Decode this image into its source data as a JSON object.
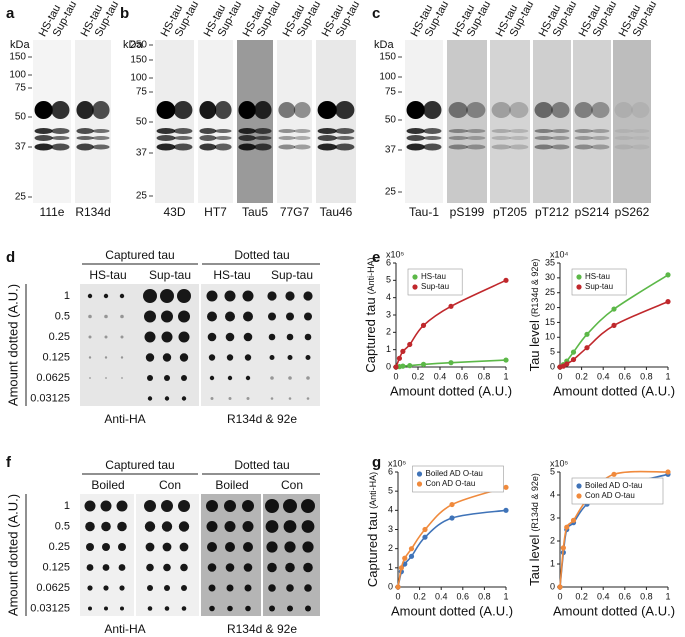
{
  "panel_labels": [
    "a",
    "b",
    "c",
    "d",
    "e",
    "f",
    "g"
  ],
  "blots": {
    "kda": "kDa",
    "lanes": [
      "HS-tau",
      "Sup-tau"
    ],
    "a": {
      "markers": [
        "150",
        "100",
        "75",
        "50",
        "37",
        "25"
      ],
      "antibodies": [
        "111e",
        "R134d"
      ]
    },
    "b": {
      "markers": [
        "250",
        "150",
        "100",
        "75",
        "50",
        "37",
        "25"
      ],
      "antibodies": [
        "43D",
        "HT7",
        "Tau5",
        "77G7",
        "Tau46"
      ]
    },
    "c": {
      "markers": [
        "150",
        "100",
        "75",
        "50",
        "37",
        "25"
      ],
      "antibodies": [
        "Tau-1",
        "pS199",
        "pT205",
        "pT212",
        "pS214",
        "pS262"
      ]
    }
  },
  "dot_blots": {
    "amounts": [
      "1",
      "0.5",
      "0.25",
      "0.125",
      "0.0625",
      "0.03125"
    ],
    "ylabel": "Amount dotted (A.U.)",
    "d": {
      "headers": [
        "Captured tau",
        "Dotted tau"
      ],
      "groups": [
        "HS-tau",
        "Sup-tau",
        "HS-tau",
        "Sup-tau"
      ],
      "captions": [
        "Anti-HA",
        "R134d & 92e"
      ]
    },
    "f": {
      "headers": [
        "Captured tau",
        "Dotted tau"
      ],
      "groups": [
        "Boiled",
        "Con",
        "Boiled",
        "Con"
      ],
      "captions": [
        "Anti-HA",
        "R134d & 92e"
      ]
    }
  },
  "chart_data": [
    {
      "type": "line",
      "ylabel": "Captured tau",
      "ylabel_note": "(Anti-HA)",
      "y_multiplier": "x10⁵",
      "xlabel": "Amount dotted (A.U.)",
      "x": [
        0,
        0.03125,
        0.0625,
        0.125,
        0.25,
        0.5,
        1
      ],
      "xlim": [
        0,
        1
      ],
      "xticks": [
        0,
        0.2,
        0.4,
        0.6,
        0.8,
        1
      ],
      "ylim": [
        0,
        6
      ],
      "yticks": [
        0,
        1,
        2,
        3,
        4,
        5,
        6
      ],
      "legend": "upper left",
      "series": [
        {
          "name": "HS-tau",
          "color": "#5cb848",
          "values": [
            0,
            0.02,
            0.05,
            0.08,
            0.15,
            0.25,
            0.4
          ]
        },
        {
          "name": "Sup-tau",
          "color": "#c0282c",
          "values": [
            0,
            0.5,
            0.9,
            1.3,
            2.4,
            3.5,
            5.0
          ]
        }
      ]
    },
    {
      "type": "line",
      "ylabel": "Tau level",
      "ylabel_note": "(R134d & 92e)",
      "y_multiplier": "x10⁴",
      "xlabel": "Amount dotted (A.U.)",
      "x": [
        0,
        0.03125,
        0.0625,
        0.125,
        0.25,
        0.5,
        1
      ],
      "xlim": [
        0,
        1
      ],
      "xticks": [
        0,
        0.2,
        0.4,
        0.6,
        0.8,
        1
      ],
      "ylim": [
        0,
        35
      ],
      "yticks": [
        0,
        5,
        10,
        15,
        20,
        25,
        30,
        35
      ],
      "legend": "upper left",
      "series": [
        {
          "name": "HS-tau",
          "color": "#5cb848",
          "values": [
            0,
            0.8,
            2,
            5,
            11,
            19.5,
            31
          ]
        },
        {
          "name": "Sup-tau",
          "color": "#c0282c",
          "values": [
            0,
            0.3,
            1,
            2.5,
            6.5,
            14,
            22
          ]
        }
      ]
    },
    {
      "type": "line",
      "ylabel": "Captured tau",
      "ylabel_note": "(Anti-HA)",
      "y_multiplier": "x10⁵",
      "xlabel": "Amount dotted (A.U.)",
      "x": [
        0,
        0.03125,
        0.0625,
        0.125,
        0.25,
        0.5,
        1
      ],
      "xlim": [
        0,
        1
      ],
      "xticks": [
        0,
        0.2,
        0.4,
        0.6,
        0.8,
        1
      ],
      "ylim": [
        0,
        6
      ],
      "yticks": [
        0,
        1,
        2,
        3,
        4,
        5,
        6
      ],
      "legend": "upper center",
      "series": [
        {
          "name": "Boiled AD O-tau",
          "color": "#3f73b8",
          "values": [
            0,
            0.8,
            1.2,
            1.6,
            2.6,
            3.6,
            4.0
          ]
        },
        {
          "name": "Con AD O-tau",
          "color": "#f08a3c",
          "values": [
            0,
            1.0,
            1.5,
            2.0,
            3.0,
            4.3,
            5.2
          ]
        }
      ]
    },
    {
      "type": "line",
      "ylabel": "Tau level",
      "ylabel_note": "(R134d & 92e)",
      "y_multiplier": "x10⁵",
      "xlabel": "Amount dotted (A.U.)",
      "x": [
        0,
        0.03125,
        0.0625,
        0.125,
        0.25,
        0.5,
        1
      ],
      "xlim": [
        0,
        1
      ],
      "xticks": [
        0,
        0.2,
        0.4,
        0.6,
        0.8,
        1
      ],
      "ylim": [
        0,
        5
      ],
      "yticks": [
        0,
        1,
        2,
        3,
        4,
        5
      ],
      "legend": "upper left",
      "series": [
        {
          "name": "Boiled AD O-tau",
          "color": "#3f73b8",
          "values": [
            0,
            1.5,
            2.5,
            2.8,
            3.6,
            4.3,
            4.9
          ]
        },
        {
          "name": "Con AD O-tau",
          "color": "#f08a3c",
          "values": [
            0,
            1.7,
            2.6,
            2.9,
            3.8,
            4.9,
            5.0
          ]
        }
      ]
    }
  ]
}
